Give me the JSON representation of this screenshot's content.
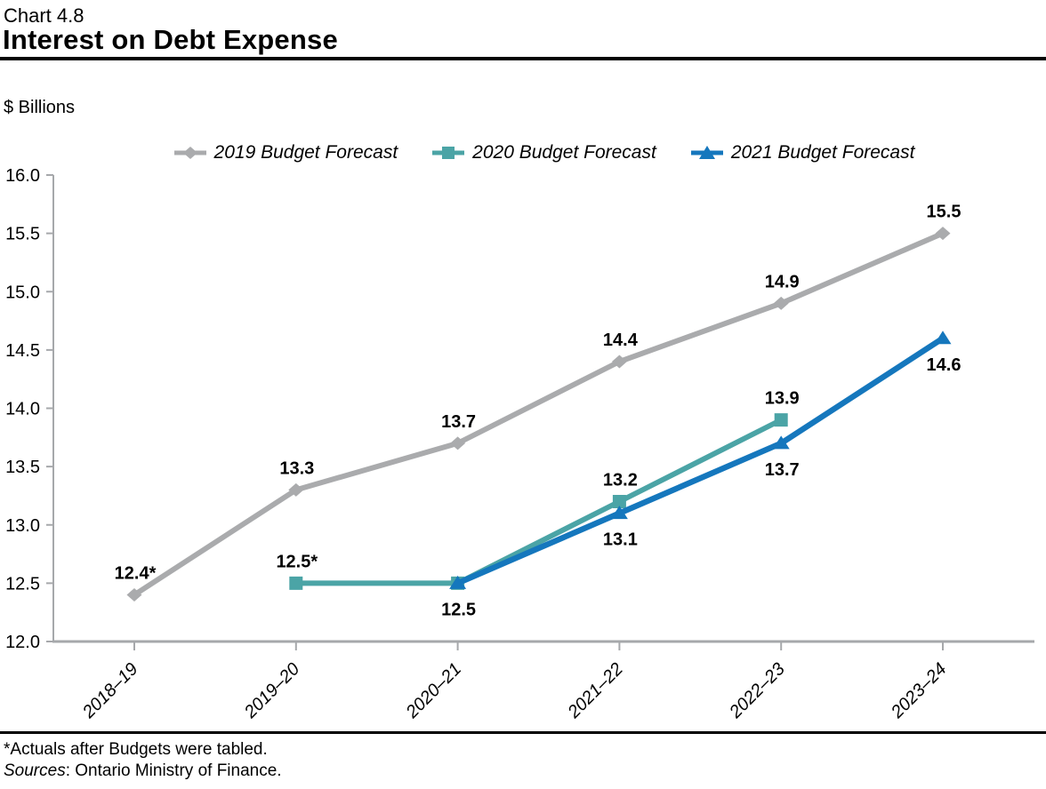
{
  "header": {
    "chart_number": "Chart 4.8",
    "title": "Interest on Debt Expense"
  },
  "chart_data": {
    "type": "line",
    "title": "Interest on Debt Expense",
    "ylabel": "$ Billions",
    "xlabel": "",
    "categories": [
      "2018–19",
      "2019–20",
      "2020–21",
      "2021–22",
      "2022–23",
      "2023–24"
    ],
    "ylim": [
      12.0,
      16.0
    ],
    "ytick_step": 0.5,
    "grid": false,
    "legend_position": "top",
    "axis_color": "#A6A8AB",
    "series": [
      {
        "name": "2019 Budget Forecast",
        "color": "#AAABAD",
        "marker": "diamond",
        "start_index": 0,
        "values": [
          12.4,
          13.3,
          13.7,
          14.4,
          14.9,
          15.5
        ],
        "point_labels": [
          "12.4*",
          "13.3",
          "13.7",
          "14.4",
          "14.9",
          "15.5"
        ],
        "label_position": "above"
      },
      {
        "name": "2020 Budget Forecast",
        "color": "#4BA4A6",
        "marker": "square",
        "start_index": 1,
        "values": [
          12.5,
          12.5,
          13.2,
          13.9
        ],
        "point_labels": [
          "12.5*",
          "",
          "13.2",
          "13.9"
        ],
        "label_position": "above"
      },
      {
        "name": "2021 Budget Forecast",
        "color": "#1577BD",
        "marker": "triangle",
        "start_index": 2,
        "values": [
          12.5,
          13.1,
          13.7,
          14.6
        ],
        "point_labels": [
          "12.5",
          "13.1",
          "13.7",
          "14.6"
        ],
        "label_position": "below"
      }
    ]
  },
  "footnotes": {
    "asterisk": "*Actuals after Budgets were tabled.",
    "sources_label": "Sources",
    "sources_rest": ": Ontario Ministry of Finance."
  }
}
